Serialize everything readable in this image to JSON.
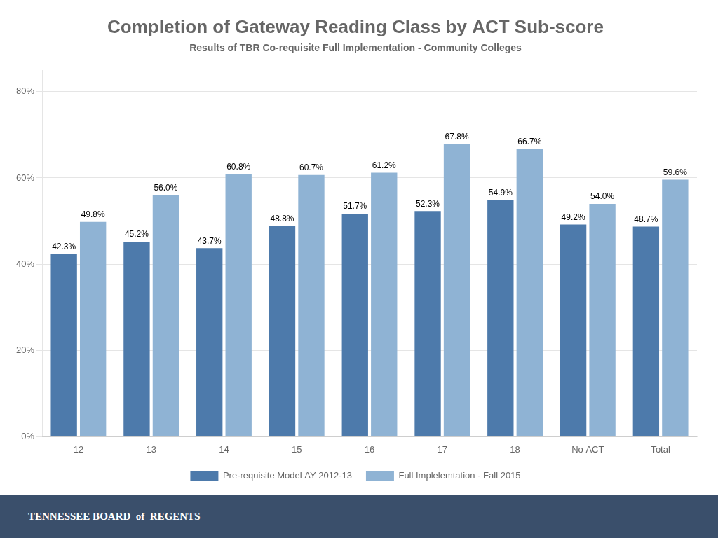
{
  "chart_data": {
    "type": "bar",
    "title": "Completion of Gateway Reading Class by ACT Sub-score",
    "subtitle": "Results of TBR Co-requisite Full Implementation - Community Colleges",
    "annotations": [
      "TENNESSEE BOARD  of  REGENTS"
    ],
    "categories": [
      "12",
      "13",
      "14",
      "15",
      "16",
      "17",
      "18",
      "No ACT",
      "Total"
    ],
    "series": [
      {
        "name": "Pre-requisite Model AY 2012-13",
        "color": "#4d7aab",
        "values": [
          42.3,
          45.2,
          43.7,
          48.8,
          51.7,
          52.3,
          54.9,
          49.2,
          48.7
        ],
        "value_labels": [
          "42.3%",
          "45.2%",
          "43.7%",
          "48.8%",
          "51.7%",
          "52.3%",
          "54.9%",
          "49.2%",
          "48.7%"
        ]
      },
      {
        "name": "Full Implelemtation - Fall 2015",
        "color": "#8fb3d4",
        "values": [
          49.8,
          56.0,
          60.8,
          60.7,
          61.2,
          67.8,
          66.7,
          54.0,
          59.6
        ],
        "value_labels": [
          "49.8%",
          "56.0%",
          "60.8%",
          "60.7%",
          "61.2%",
          "67.8%",
          "66.7%",
          "54.0%",
          "59.6%"
        ]
      }
    ],
    "ylim": [
      0,
      85
    ],
    "yticks": [
      {
        "value": 0,
        "label": "0%"
      },
      {
        "value": 20,
        "label": "20%"
      },
      {
        "value": 40,
        "label": "40%"
      },
      {
        "value": 60,
        "label": "60%"
      },
      {
        "value": 80,
        "label": "80%"
      }
    ],
    "grid": true,
    "legend": "bottom",
    "data_labels": true
  }
}
